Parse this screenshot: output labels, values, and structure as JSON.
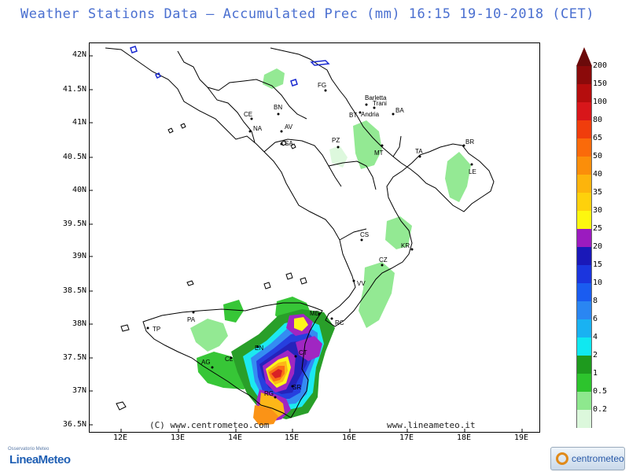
{
  "title": "Weather Stations Data — Accumulated Prec (mm)   16:15 19-10-2018 (CET)",
  "axes": {
    "lat_labels": [
      "42N",
      "41.5N",
      "41N",
      "40.5N",
      "40N",
      "39.5N",
      "39N",
      "38.5N",
      "38N",
      "37.5N",
      "37N",
      "36.5N"
    ],
    "lon_labels": [
      "12E",
      "13E",
      "14E",
      "15E",
      "16E",
      "17E",
      "18E",
      "19E"
    ]
  },
  "cities": [
    {
      "code": "FG",
      "name": "FG"
    },
    {
      "code": "BT_top",
      "name": "Barletta"
    },
    {
      "code": "Trani",
      "name": "Trani"
    },
    {
      "code": "BA",
      "name": "BA"
    },
    {
      "code": "BT",
      "name": "BT"
    },
    {
      "code": "Andria",
      "name": "Andria"
    },
    {
      "code": "CE",
      "name": "CE"
    },
    {
      "code": "BN",
      "name": "BN"
    },
    {
      "code": "NA",
      "name": "NA"
    },
    {
      "code": "AV",
      "name": "AV"
    },
    {
      "code": "SA",
      "name": "SA"
    },
    {
      "code": "PZ",
      "name": "PZ"
    },
    {
      "code": "MT",
      "name": "MT"
    },
    {
      "code": "TA",
      "name": "TA"
    },
    {
      "code": "BR",
      "name": "BR"
    },
    {
      "code": "LE",
      "name": "LE"
    },
    {
      "code": "CS",
      "name": "CS"
    },
    {
      "code": "KR",
      "name": "KR"
    },
    {
      "code": "CZ",
      "name": "CZ"
    },
    {
      "code": "VV",
      "name": "VV"
    },
    {
      "code": "ME",
      "name": "ME"
    },
    {
      "code": "RC",
      "name": "RC"
    },
    {
      "code": "TP",
      "name": "TP"
    },
    {
      "code": "PA",
      "name": "PA"
    },
    {
      "code": "EN",
      "name": "EN"
    },
    {
      "code": "AG",
      "name": "AG"
    },
    {
      "code": "CL",
      "name": "CL"
    },
    {
      "code": "CT",
      "name": "CT"
    },
    {
      "code": "RG",
      "name": "RG"
    },
    {
      "code": "SR",
      "name": "SR"
    }
  ],
  "credits": {
    "left": "(C) www.centrometeo.com",
    "right": "www.lineameteo.it"
  },
  "legend": {
    "unit": "mm",
    "labels": [
      "200",
      "150",
      "100",
      "80",
      "65",
      "50",
      "40",
      "35",
      "30",
      "25",
      "20",
      "15",
      "10",
      "8",
      "6",
      "4",
      "2",
      "1",
      "0.5",
      "0.2"
    ],
    "colors": [
      "#8b0a0a",
      "#b50d0d",
      "#d8161a",
      "#f03d0c",
      "#fa6a0a",
      "#fb8e0a",
      "#fdb40c",
      "#fed10c",
      "#fdf70f",
      "#9b1bbf",
      "#1a18b8",
      "#1b35de",
      "#1a5cf0",
      "#2a86f2",
      "#19b2f2",
      "#10e8f0",
      "#1e9a1e",
      "#2dc42d",
      "#8ee88e",
      "#dcf8dc"
    ]
  },
  "logos": {
    "left": "LineaMeteo",
    "left_sup": "Osservatorio Meteo",
    "right": "centrometeo"
  }
}
